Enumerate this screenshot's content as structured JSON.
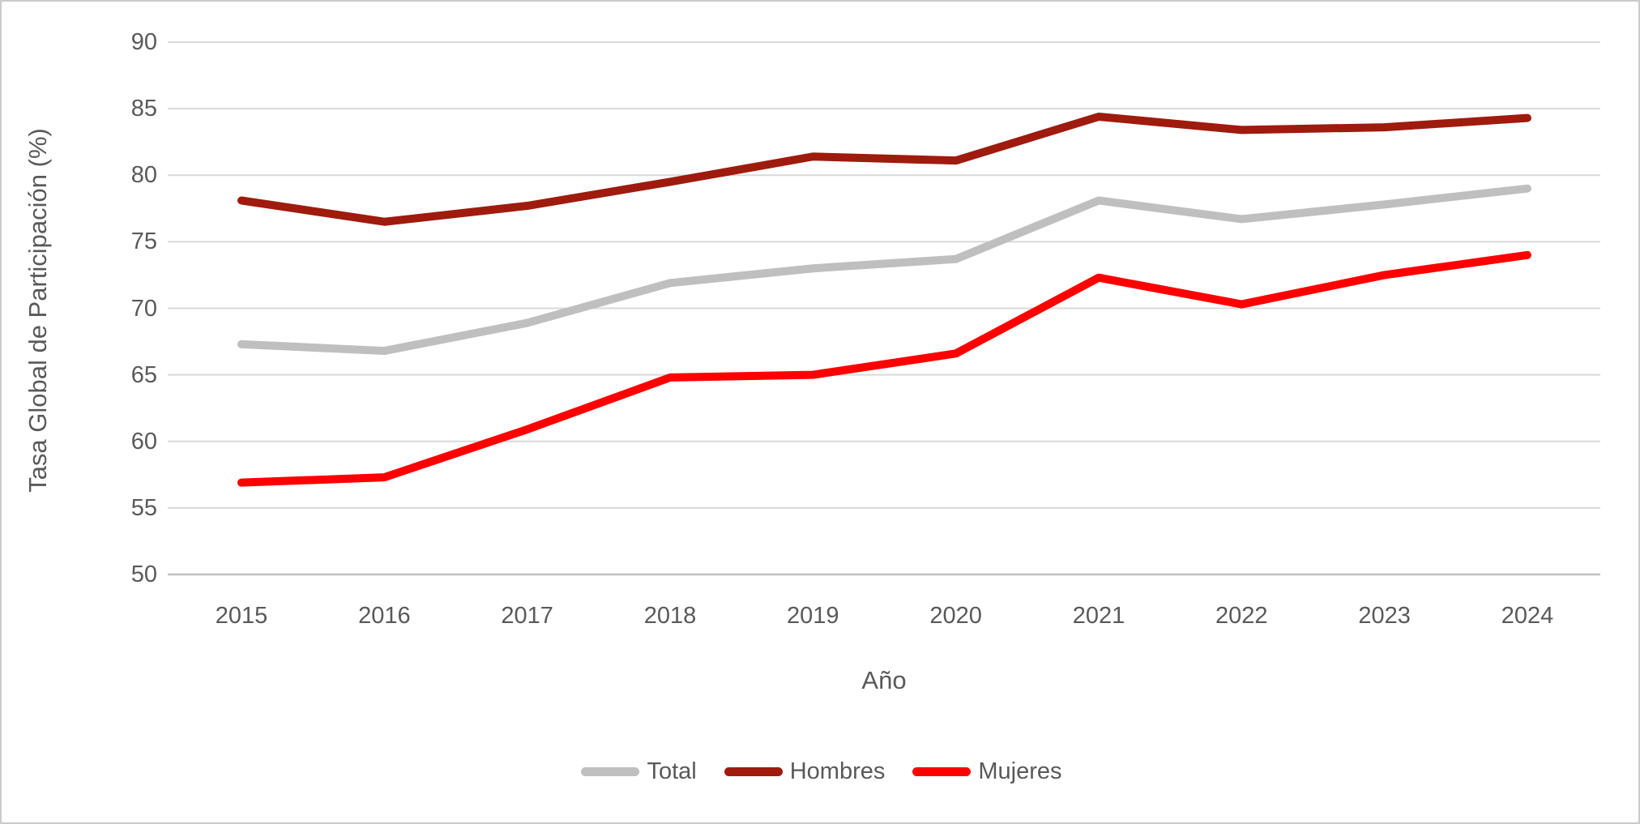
{
  "chart_data": {
    "type": "line",
    "title": "",
    "xlabel": "Año",
    "ylabel": "Tasa Global de Participación (%)",
    "categories": [
      "2015",
      "2016",
      "2017",
      "2018",
      "2019",
      "2020",
      "2021",
      "2022",
      "2023",
      "2024"
    ],
    "series": [
      {
        "name": "Total",
        "color": "#BFBFBF",
        "values": [
          67.3,
          66.8,
          68.9,
          71.9,
          73.0,
          73.7,
          78.1,
          76.7,
          77.8,
          79.0
        ]
      },
      {
        "name": "Hombres",
        "color": "#9E1B0E",
        "values": [
          78.1,
          76.5,
          77.7,
          79.5,
          81.4,
          81.1,
          84.4,
          83.4,
          83.6,
          84.3
        ]
      },
      {
        "name": "Mujeres",
        "color": "#FF0000",
        "values": [
          56.9,
          57.3,
          60.9,
          64.8,
          65.0,
          66.6,
          72.3,
          70.3,
          72.5,
          74.0
        ]
      }
    ],
    "ylim": [
      50,
      90
    ],
    "y_ticks": [
      "90",
      "85",
      "80",
      "75",
      "70",
      "65",
      "60",
      "55",
      "50"
    ],
    "grid": true,
    "legend_position": "bottom",
    "colors": {
      "gridline": "#D9D9D9",
      "axis_line": "#BFBFBF",
      "axis_text": "#595959"
    }
  }
}
